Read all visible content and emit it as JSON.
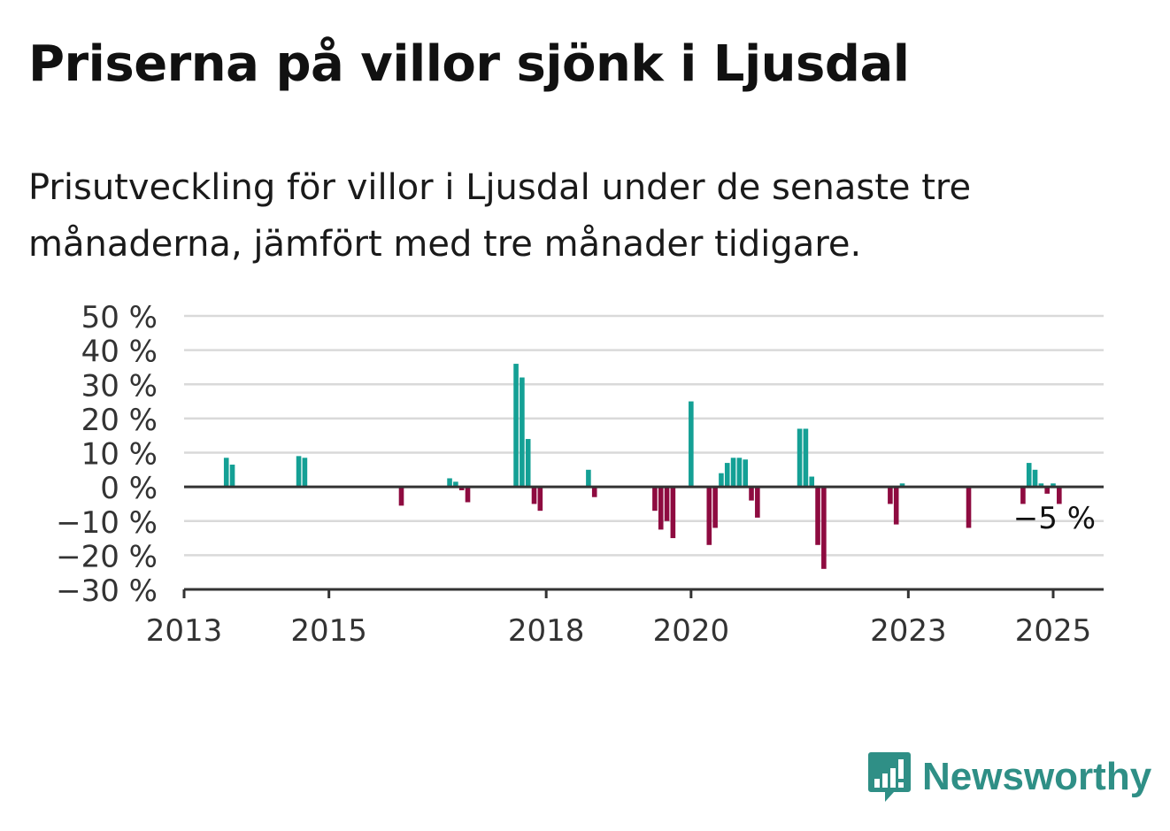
{
  "header": {
    "title": "Priserna på villor sjönk i Ljusdal",
    "subtitle": "Prisutveckling för villor i Ljusdal under de senaste tre månaderna, jämfört med tre månader tidigare."
  },
  "brand": {
    "name": "Newsworthy",
    "icon": "newsworthy-logo-icon",
    "color": "#2f8f86"
  },
  "colors": {
    "positive": "#14a095",
    "negative": "#8e0b40",
    "grid": "#d9d9d9",
    "axis": "#333333"
  },
  "chart_data": {
    "type": "bar",
    "title": "Priserna på villor sjönk i Ljusdal",
    "xlabel": "",
    "ylabel": "",
    "ylim": [
      -30,
      50
    ],
    "xlim": [
      "2013-01",
      "2025-09"
    ],
    "grid": true,
    "y_ticks": [
      {
        "value": 50,
        "label": "50 %"
      },
      {
        "value": 40,
        "label": "40 %"
      },
      {
        "value": 30,
        "label": "30 %"
      },
      {
        "value": 20,
        "label": "20 %"
      },
      {
        "value": 10,
        "label": "10 %"
      },
      {
        "value": 0,
        "label": "0 %"
      },
      {
        "value": -10,
        "label": "−10 %"
      },
      {
        "value": -20,
        "label": "−20 %"
      },
      {
        "value": -30,
        "label": "−30 %"
      }
    ],
    "x_ticks": [
      {
        "value": "2013-01",
        "label": "2013"
      },
      {
        "value": "2015-01",
        "label": "2015"
      },
      {
        "value": "2018-01",
        "label": "2018"
      },
      {
        "value": "2020-01",
        "label": "2020"
      },
      {
        "value": "2023-01",
        "label": "2023"
      },
      {
        "value": "2025-01",
        "label": "2025"
      }
    ],
    "annotation": {
      "label": "−5 %",
      "x": "2025-01",
      "y": -5
    },
    "points": [
      {
        "x": "2013-08",
        "y": 8.5
      },
      {
        "x": "2013-09",
        "y": 6.5
      },
      {
        "x": "2014-08",
        "y": 9
      },
      {
        "x": "2014-09",
        "y": 8.5
      },
      {
        "x": "2016-01",
        "y": -5.5
      },
      {
        "x": "2016-09",
        "y": 2.5
      },
      {
        "x": "2016-10",
        "y": 1.5
      },
      {
        "x": "2016-11",
        "y": -1
      },
      {
        "x": "2016-12",
        "y": -4.5
      },
      {
        "x": "2017-08",
        "y": 36
      },
      {
        "x": "2017-09",
        "y": 32
      },
      {
        "x": "2017-10",
        "y": 14
      },
      {
        "x": "2017-11",
        "y": -5
      },
      {
        "x": "2017-12",
        "y": -7
      },
      {
        "x": "2018-08",
        "y": 5
      },
      {
        "x": "2018-09",
        "y": -3
      },
      {
        "x": "2019-07",
        "y": -7
      },
      {
        "x": "2019-08",
        "y": -12.5
      },
      {
        "x": "2019-09",
        "y": -10
      },
      {
        "x": "2019-10",
        "y": -15
      },
      {
        "x": "2020-01",
        "y": 25
      },
      {
        "x": "2020-04",
        "y": -17
      },
      {
        "x": "2020-05",
        "y": -12
      },
      {
        "x": "2020-06",
        "y": 4
      },
      {
        "x": "2020-07",
        "y": 7
      },
      {
        "x": "2020-08",
        "y": 8.5
      },
      {
        "x": "2020-09",
        "y": 8.5
      },
      {
        "x": "2020-10",
        "y": 8
      },
      {
        "x": "2020-11",
        "y": -4
      },
      {
        "x": "2020-12",
        "y": -9
      },
      {
        "x": "2021-07",
        "y": 17
      },
      {
        "x": "2021-08",
        "y": 17
      },
      {
        "x": "2021-09",
        "y": 3
      },
      {
        "x": "2021-10",
        "y": -17
      },
      {
        "x": "2021-11",
        "y": -24
      },
      {
        "x": "2022-10",
        "y": -5
      },
      {
        "x": "2022-11",
        "y": -11
      },
      {
        "x": "2022-12",
        "y": 1
      },
      {
        "x": "2023-11",
        "y": -12
      },
      {
        "x": "2024-08",
        "y": -5
      },
      {
        "x": "2024-09",
        "y": 7
      },
      {
        "x": "2024-10",
        "y": 5
      },
      {
        "x": "2024-11",
        "y": 1
      },
      {
        "x": "2024-12",
        "y": -2
      },
      {
        "x": "2025-01",
        "y": 1
      },
      {
        "x": "2025-02",
        "y": -5
      }
    ]
  }
}
